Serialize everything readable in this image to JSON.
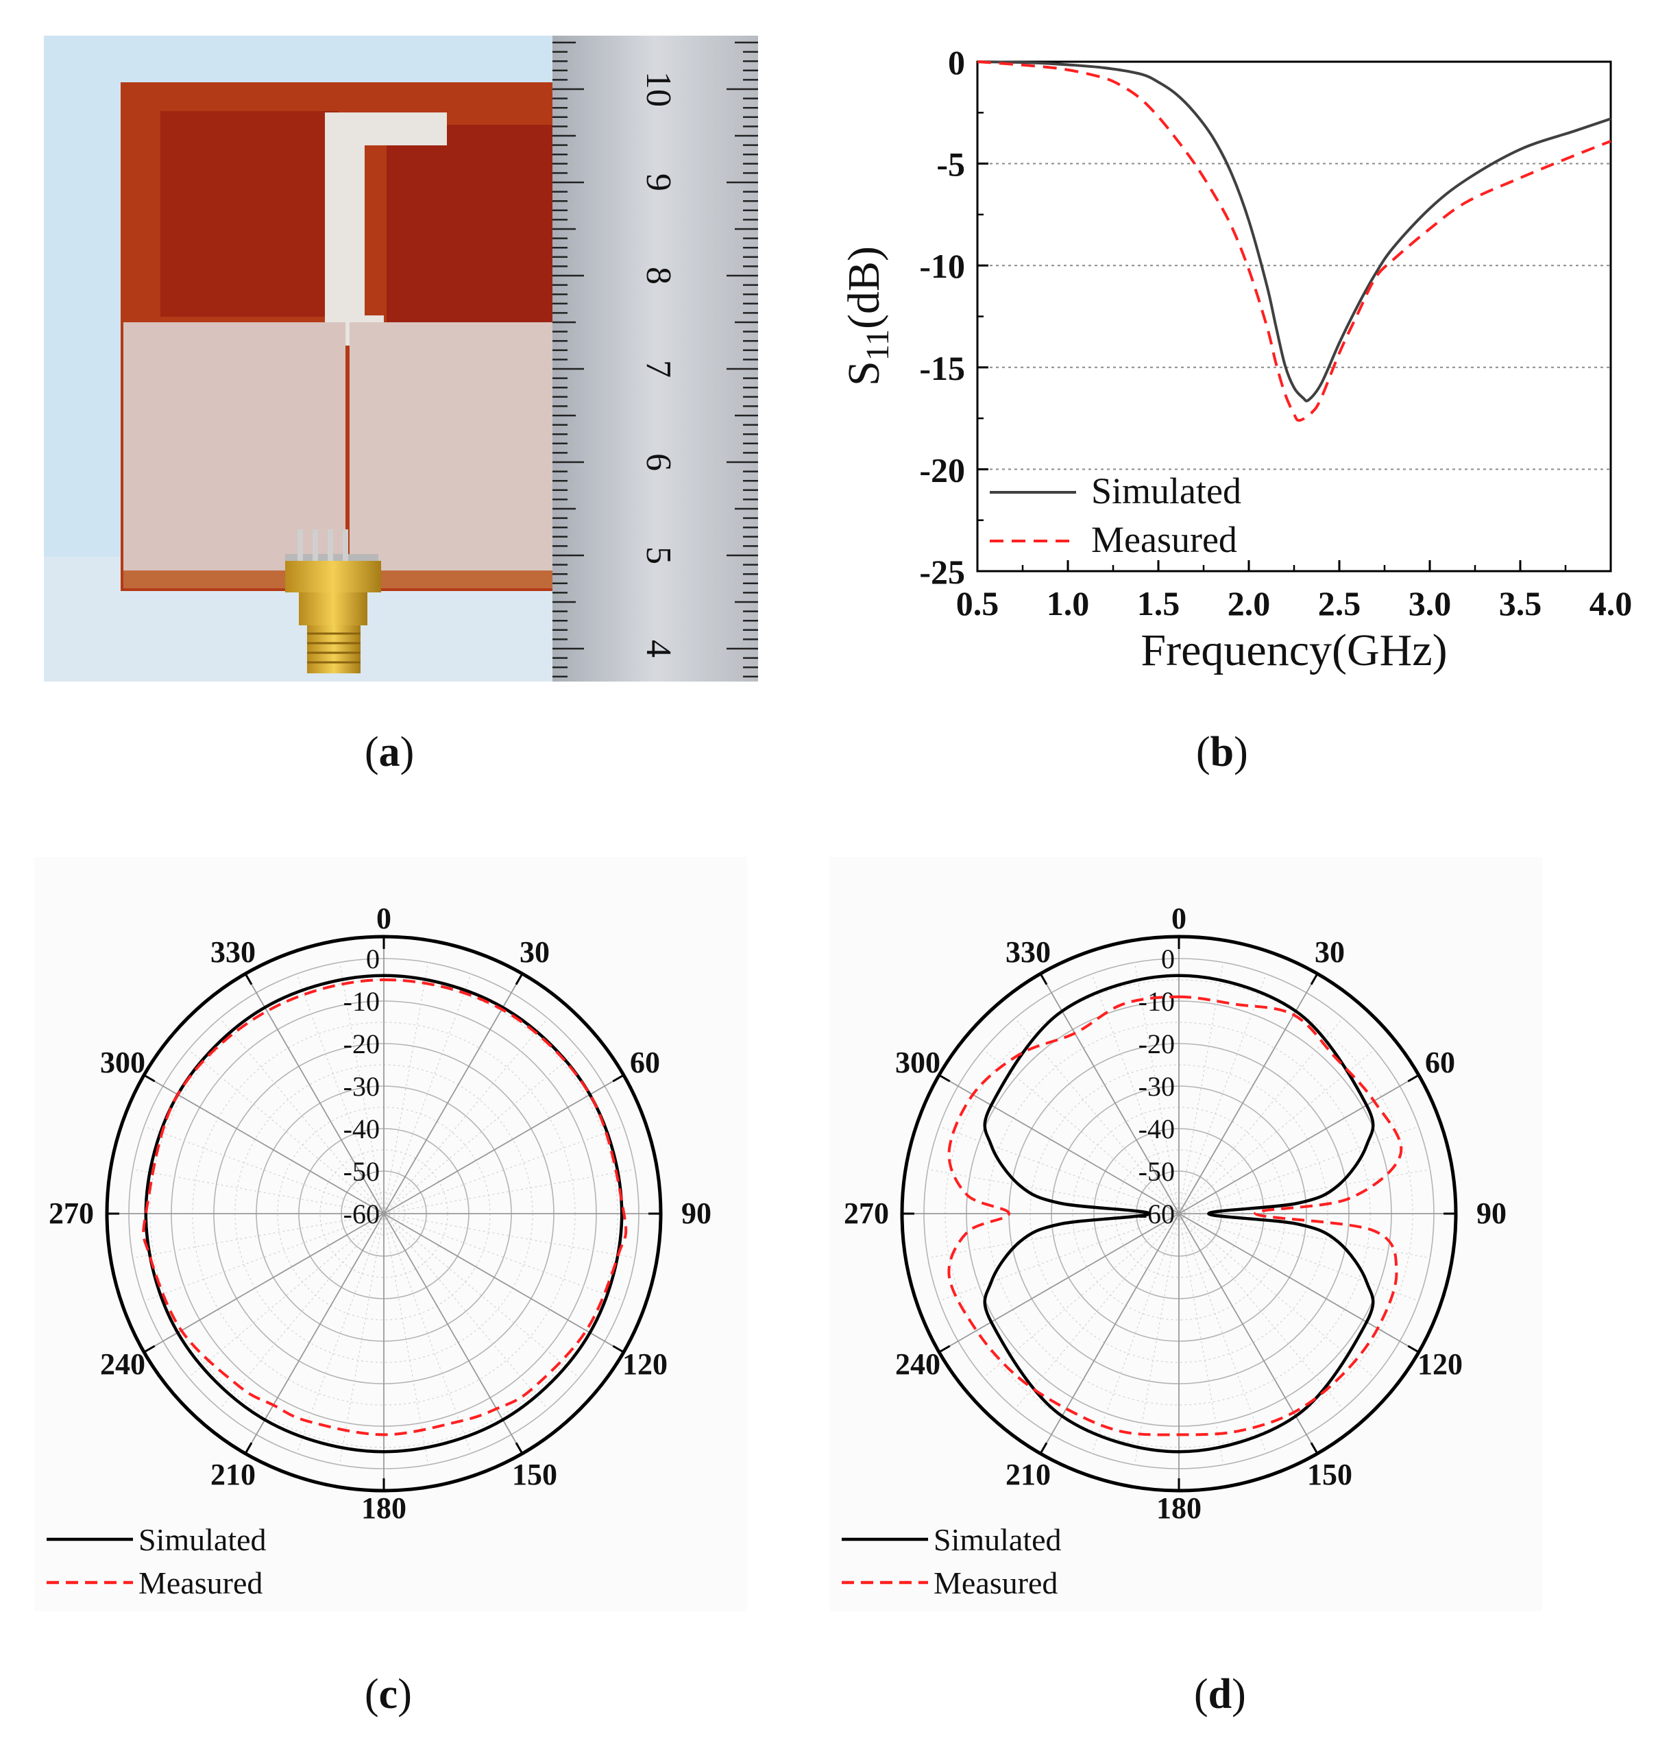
{
  "panels": {
    "a": "a",
    "b": "b",
    "c": "c",
    "d": "d"
  },
  "photo": {
    "ruler_labels": [
      "10",
      "9",
      "8",
      "7",
      "6",
      "5",
      "4"
    ]
  },
  "chart_data": [
    {
      "type": "line",
      "panel": "b",
      "xlabel": "Frequency(GHz)",
      "ylabel": "S11(dB)",
      "ylabel_main": "S",
      "ylabel_sub": "11",
      "ylabel_rest": "(dB)",
      "xlim": [
        0.5,
        4.0
      ],
      "ylim": [
        -25,
        0
      ],
      "xticks": [
        "0.5",
        "1.0",
        "1.5",
        "2.0",
        "2.5",
        "3.0",
        "3.5",
        "4.0"
      ],
      "yticks": [
        "0",
        "-5",
        "-10",
        "-15",
        "-20",
        "-25"
      ],
      "grid": "horizontal dotted",
      "legend_position": "bottom-left",
      "series": [
        {
          "name": "Simulated",
          "color": "#404040",
          "style": "solid",
          "x": [
            0.5,
            0.8,
            1.0,
            1.2,
            1.4,
            1.5,
            1.6,
            1.7,
            1.8,
            1.9,
            2.0,
            2.1,
            2.15,
            2.2,
            2.25,
            2.3,
            2.33,
            2.4,
            2.5,
            2.6,
            2.7,
            2.8,
            3.0,
            3.2,
            3.5,
            3.8,
            4.0
          ],
          "y": [
            0,
            -0.05,
            -0.15,
            -0.3,
            -0.6,
            -1.0,
            -1.6,
            -2.5,
            -3.7,
            -5.4,
            -7.8,
            -11.0,
            -13.0,
            -14.9,
            -16.0,
            -16.5,
            -16.6,
            -15.8,
            -13.8,
            -12.0,
            -10.4,
            -9.1,
            -7.2,
            -5.8,
            -4.3,
            -3.4,
            -2.8
          ]
        },
        {
          "name": "Measured",
          "color": "#ff2020",
          "style": "dashed",
          "x": [
            0.5,
            0.8,
            1.0,
            1.2,
            1.3,
            1.4,
            1.5,
            1.6,
            1.7,
            1.8,
            1.9,
            2.0,
            2.1,
            2.15,
            2.2,
            2.25,
            2.28,
            2.35,
            2.4,
            2.5,
            2.6,
            2.7,
            2.8,
            3.0,
            3.2,
            3.5,
            3.8,
            4.0
          ],
          "y": [
            0,
            -0.2,
            -0.4,
            -0.8,
            -1.2,
            -1.8,
            -2.7,
            -3.8,
            -5.0,
            -6.4,
            -8.0,
            -10.2,
            -13.0,
            -14.8,
            -16.3,
            -17.3,
            -17.6,
            -17.2,
            -16.5,
            -14.3,
            -12.4,
            -10.6,
            -9.7,
            -8.2,
            -6.9,
            -5.7,
            -4.6,
            -3.9
          ]
        }
      ]
    },
    {
      "type": "polar",
      "panel": "c",
      "radial_range": [
        -60,
        0
      ],
      "radial_ticks": [
        "0",
        "-10",
        "-20",
        "-30",
        "-40",
        "-50",
        "-60"
      ],
      "angle_ticks": [
        "0",
        "30",
        "60",
        "90",
        "120",
        "150",
        "180",
        "210",
        "240",
        "270",
        "300",
        "330"
      ],
      "legend_position": "bottom-left",
      "series": [
        {
          "name": "Simulated",
          "color": "#000000",
          "style": "solid",
          "theta": [
            0,
            30,
            60,
            90,
            120,
            150,
            180,
            210,
            240,
            270,
            300,
            330
          ],
          "r": [
            -4,
            -4,
            -4,
            -4,
            -4,
            -4,
            -4,
            -4,
            -4,
            -4,
            -4,
            -4
          ]
        },
        {
          "name": "Measured",
          "color": "#ff2020",
          "style": "dashed",
          "theta": [
            0,
            30,
            60,
            90,
            100,
            120,
            140,
            150,
            160,
            180,
            200,
            210,
            220,
            240,
            260,
            270,
            300,
            330
          ],
          "r": [
            -5,
            -4.5,
            -4,
            -3.5,
            -4,
            -5,
            -6,
            -7,
            -8,
            -8,
            -8,
            -8,
            -7,
            -5,
            -4,
            -4,
            -4,
            -5
          ]
        }
      ]
    },
    {
      "type": "polar",
      "panel": "d",
      "radial_range": [
        -60,
        0
      ],
      "radial_ticks": [
        "0",
        "-10",
        "-20",
        "-30",
        "-40",
        "-50",
        "-60"
      ],
      "angle_ticks": [
        "0",
        "30",
        "60",
        "90",
        "120",
        "150",
        "180",
        "210",
        "240",
        "270",
        "300",
        "330"
      ],
      "legend_position": "bottom-left",
      "series": [
        {
          "name": "Simulated",
          "color": "#000000",
          "style": "solid",
          "theta": [
            0,
            30,
            60,
            70,
            80,
            85,
            90,
            95,
            100,
            110,
            120,
            150,
            180,
            210,
            240,
            250,
            260,
            265,
            270,
            275,
            280,
            290,
            300,
            330
          ],
          "r": [
            -4,
            -5,
            -9,
            -13,
            -22,
            -32,
            -53,
            -32,
            -22,
            -13,
            -9,
            -5,
            -4,
            -5,
            -9,
            -13,
            -22,
            -32,
            -53,
            -32,
            -22,
            -13,
            -9,
            -5
          ]
        },
        {
          "name": "Measured",
          "color": "#ff2020",
          "style": "dashed",
          "theta": [
            0,
            15,
            30,
            45,
            60,
            75,
            85,
            90,
            95,
            105,
            120,
            135,
            150,
            165,
            180,
            195,
            210,
            225,
            240,
            255,
            265,
            270,
            275,
            285,
            300,
            315,
            330,
            345
          ],
          "r": [
            -9,
            -9,
            -6,
            -8,
            -7,
            -6,
            -20,
            -42,
            -14,
            -7,
            -6,
            -6,
            -6,
            -7,
            -8,
            -7,
            -7,
            -6,
            -5,
            -4,
            -10,
            -20,
            -10,
            -4,
            -4,
            -7,
            -11,
            -9
          ]
        }
      ]
    }
  ]
}
